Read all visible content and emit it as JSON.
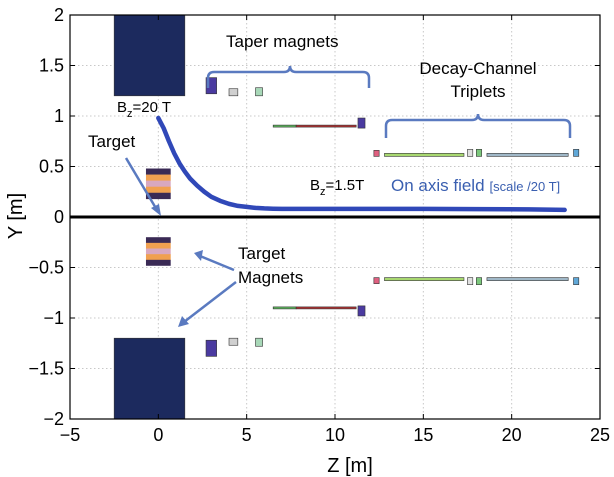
{
  "chart_data": {
    "type": "line",
    "xlabel": "Z [m]",
    "ylabel": "Y [m]",
    "xlim": [
      -5,
      25
    ],
    "ylim": [
      -2,
      2
    ],
    "grid": true,
    "x_ticks": [
      -5,
      0,
      5,
      10,
      15,
      20,
      25
    ],
    "x_tick_labels": [
      "−5",
      "0",
      "5",
      "10",
      "15",
      "20",
      "25"
    ],
    "y_ticks": [
      -2,
      -1.5,
      -1,
      -0.5,
      0,
      0.5,
      1,
      1.5,
      2
    ],
    "y_tick_labels": [
      "−2",
      "−1.5",
      "−1",
      "−0.5",
      "0",
      "0.5",
      "1",
      "1.5",
      "2"
    ],
    "series": [
      {
        "name": "On axis field",
        "color": "#3048b8",
        "x": [
          0.0,
          0.3,
          0.6,
          0.9,
          1.2,
          1.5,
          1.8,
          2.2,
          2.6,
          3.0,
          3.5,
          4.0,
          4.5,
          5.0,
          5.5,
          6.0,
          6.5,
          7.0,
          9.0,
          12.0,
          15.0,
          18.0,
          21.0,
          23.0
        ],
        "y": [
          0.98,
          0.88,
          0.75,
          0.63,
          0.53,
          0.45,
          0.38,
          0.31,
          0.25,
          0.2,
          0.16,
          0.13,
          0.11,
          0.1,
          0.09,
          0.085,
          0.082,
          0.08,
          0.08,
          0.08,
          0.08,
          0.078,
          0.075,
          0.07
        ]
      }
    ],
    "magnets": [
      {
        "z0": -2.5,
        "z1": 1.5,
        "y0": 1.2,
        "y1": 2.0,
        "color": "#1c2a5e"
      },
      {
        "z0": -2.5,
        "z1": 1.5,
        "y0": -2.0,
        "y1": -1.2,
        "color": "#1c2a5e"
      },
      {
        "z0": 2.7,
        "z1": 3.3,
        "y0": 1.22,
        "y1": 1.38,
        "color": "#4a3aa0"
      },
      {
        "z0": 2.7,
        "z1": 3.3,
        "y0": -1.38,
        "y1": -1.22,
        "color": "#4a3aa0"
      },
      {
        "z0": 4.0,
        "z1": 4.5,
        "y0": 1.2,
        "y1": 1.27,
        "color": "#d0d0d0"
      },
      {
        "z0": 4.0,
        "z1": 4.5,
        "y0": -1.27,
        "y1": -1.2,
        "color": "#d0d0d0"
      },
      {
        "z0": 5.5,
        "z1": 5.9,
        "y0": 1.2,
        "y1": 1.28,
        "color": "#a8d8b8"
      },
      {
        "z0": 5.5,
        "z1": 5.9,
        "y0": -1.28,
        "y1": -1.2,
        "color": "#a8d8b8"
      },
      {
        "z0": 6.5,
        "z1": 7.8,
        "y0": 0.89,
        "y1": 0.91,
        "color": "#5cb85c"
      },
      {
        "z0": 7.8,
        "z1": 11.2,
        "y0": 0.89,
        "y1": 0.91,
        "color": "#b03030"
      },
      {
        "z0": 11.3,
        "z1": 11.7,
        "y0": 0.88,
        "y1": 0.98,
        "color": "#4a3aa0"
      },
      {
        "z0": 6.5,
        "z1": 7.8,
        "y0": -0.91,
        "y1": -0.89,
        "color": "#5cb85c"
      },
      {
        "z0": 7.8,
        "z1": 11.2,
        "y0": -0.91,
        "y1": -0.89,
        "color": "#b03030"
      },
      {
        "z0": 11.3,
        "z1": 11.7,
        "y0": -0.98,
        "y1": -0.88,
        "color": "#4a3aa0"
      },
      {
        "z0": 12.2,
        "z1": 12.5,
        "y0": 0.6,
        "y1": 0.66,
        "color": "#e06080"
      },
      {
        "z0": 12.8,
        "z1": 17.3,
        "y0": 0.6,
        "y1": 0.63,
        "color": "#a8d870"
      },
      {
        "z0": 17.5,
        "z1": 17.8,
        "y0": 0.6,
        "y1": 0.67,
        "color": "#e0e0e0"
      },
      {
        "z0": 18.0,
        "z1": 18.3,
        "y0": 0.6,
        "y1": 0.67,
        "color": "#7cc87c"
      },
      {
        "z0": 18.6,
        "z1": 23.2,
        "y0": 0.6,
        "y1": 0.63,
        "color": "#a0b8c8"
      },
      {
        "z0": 23.5,
        "z1": 23.8,
        "y0": 0.6,
        "y1": 0.67,
        "color": "#60a8d8"
      },
      {
        "z0": 12.2,
        "z1": 12.5,
        "y0": -0.66,
        "y1": -0.6,
        "color": "#e06080"
      },
      {
        "z0": 12.8,
        "z1": 17.3,
        "y0": -0.63,
        "y1": -0.6,
        "color": "#a8d870"
      },
      {
        "z0": 17.5,
        "z1": 17.8,
        "y0": -0.67,
        "y1": -0.6,
        "color": "#e0e0e0"
      },
      {
        "z0": 18.0,
        "z1": 18.3,
        "y0": -0.67,
        "y1": -0.6,
        "color": "#7cc87c"
      },
      {
        "z0": 18.6,
        "z1": 23.2,
        "y0": -0.63,
        "y1": -0.6,
        "color": "#a0b8c8"
      },
      {
        "z0": 23.5,
        "z1": 23.8,
        "y0": -0.67,
        "y1": -0.6,
        "color": "#60a8d8"
      }
    ],
    "target_magnet_stripe_colors": [
      "#3a2a55",
      "#f0a050",
      "#d8a8c0",
      "#f0a050",
      "#3a2a55"
    ],
    "target_magnets": [
      {
        "z0": -0.7,
        "z1": 0.7,
        "y0": 0.18,
        "y1": 0.48
      },
      {
        "z0": -0.7,
        "z1": 0.7,
        "y0": -0.48,
        "y1": -0.2
      }
    ]
  },
  "annotations": {
    "taper_magnets": "Taper magnets",
    "decay_channel_line1": "Decay-Channel",
    "decay_channel_line2": "Triplets",
    "bz_high_prefix": "B",
    "bz_high_sub": "z",
    "bz_high_value": "=20 T",
    "bz_low_prefix": "B",
    "bz_low_sub": "z",
    "bz_low_value": "=1.5T",
    "on_axis_field": "On axis field",
    "scale_note": "[scale /20 T]",
    "target": "Target",
    "target_magnets_line1": "Target",
    "target_magnets_line2": "Magnets"
  },
  "colors": {
    "annotation_blue": "#3a5fb0",
    "bracket_blue": "#5a7ac0",
    "axis_black": "#000000",
    "grid": "#c8c8c8"
  }
}
